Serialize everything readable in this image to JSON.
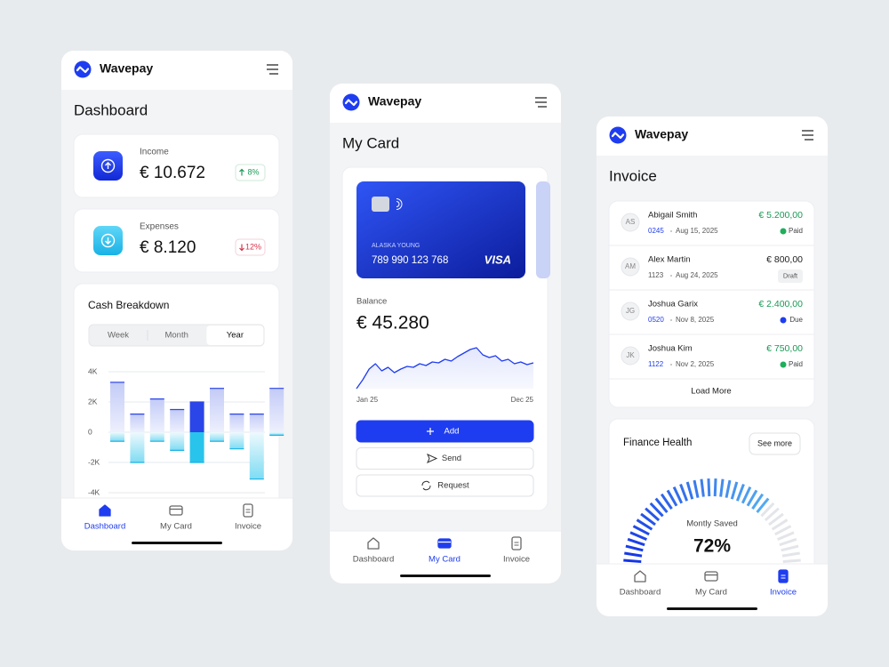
{
  "screens": [
    {
      "brand": "Wavepay",
      "title": "Dashboard",
      "income": {
        "label": "Income",
        "amount": "€ 10.672",
        "change": "8%"
      },
      "expenses": {
        "label": "Expenses",
        "amount": "€ 8.120",
        "change": "12%"
      },
      "cash_breakdown": {
        "title": "Cash Breakdown",
        "tabs": [
          "Week",
          "Month",
          "Year"
        ],
        "active_tab": 2,
        "ylim": [
          -4000,
          4000
        ],
        "yticks": [
          {
            "value": 4000,
            "label": "4K"
          },
          {
            "value": 2000,
            "label": "2K"
          },
          0,
          {
            "value": -2000,
            "label": "-2K"
          },
          {
            "value": -4000,
            "label": "-4K"
          }
        ],
        "highlight": 4,
        "series": [
          {
            "values": [
              3300,
              1200,
              2200,
              1500,
              2000,
              2900,
              1200,
              1200,
              2900
            ]
          },
          {
            "values": [
              -600,
              -2000,
              -600,
              -1200,
              -2000,
              -600,
              -1100,
              -3100,
              -200
            ]
          }
        ]
      },
      "nav": [
        "Dashboard",
        "My Card",
        "Invoice"
      ],
      "active_nav": 0
    },
    {
      "brand": "Wavepay",
      "title": "My Card",
      "card": {
        "holder": "ALASKA YOUNG",
        "number": "789 990 123 768",
        "network": "VISA"
      },
      "balance": {
        "label": "Balance",
        "amount": "€ 45.280",
        "trend": {
          "ylim": [
            0,
            60
          ],
          "values": [
            0,
            10,
            22,
            28,
            20,
            24,
            18,
            22,
            25,
            24,
            28,
            26,
            30,
            29,
            33,
            31,
            36,
            40,
            44,
            46,
            38,
            35,
            37,
            31,
            33,
            28,
            30,
            27,
            29
          ],
          "x_labels": [
            "Jan 25",
            "Dec 25"
          ]
        }
      },
      "actions": [
        "Add",
        "Send",
        "Request"
      ],
      "nav": [
        "Dashboard",
        "My Card",
        "Invoice"
      ],
      "active_nav": 1
    },
    {
      "brand": "Wavepay",
      "title": "Invoice",
      "invoices": [
        {
          "initials": "AS",
          "name": "Abigail Smith",
          "id": "0245",
          "date": "Aug 15, 2025",
          "amount": "€ 5.200,00",
          "status": "Paid"
        },
        {
          "initials": "AM",
          "name": "Alex Martin",
          "id": "1123",
          "date": "Aug 24, 2025",
          "amount": "€ 800,00",
          "status": "Draft"
        },
        {
          "initials": "JG",
          "name": "Joshua Garix",
          "id": "0520",
          "date": "Nov 8, 2025",
          "amount": "€ 2.400,00",
          "status": "Due"
        },
        {
          "initials": "JK",
          "name": "Joshua Kim",
          "id": "1122",
          "date": "Nov 2, 2025",
          "amount": "€ 750,00",
          "status": "Paid"
        }
      ],
      "load_more": "Load More",
      "finance_health": {
        "title": "Finance Health",
        "action": "See more",
        "label": "Montly Saved",
        "saved": {
          "value": 72,
          "label": "72%"
        }
      },
      "nav": [
        "Dashboard",
        "My Card",
        "Invoice"
      ],
      "active_nav": 2
    }
  ]
}
